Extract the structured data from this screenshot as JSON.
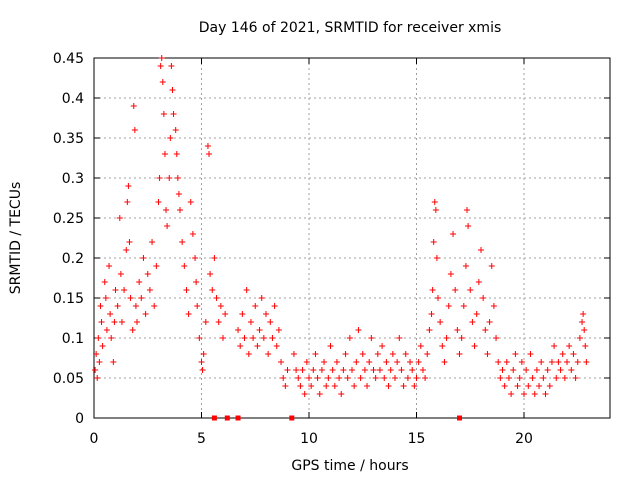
{
  "chart_data": {
    "type": "scatter",
    "title": "Day 146 of 2021, SRMTID for receiver xmis",
    "xlabel": "GPS time / hours",
    "ylabel": "SRMTID / TECUs",
    "xlim": [
      0,
      24
    ],
    "ylim": [
      0,
      0.45
    ],
    "x_ticks": [
      0,
      5,
      10,
      15,
      20
    ],
    "y_ticks": [
      0,
      0.05,
      0.1,
      0.15,
      0.2,
      0.25,
      0.3,
      0.35,
      0.4,
      0.45
    ],
    "x_tick_labels": [
      "0",
      "5",
      "10",
      "15",
      "20"
    ],
    "y_tick_labels": [
      "0",
      "0.05",
      "0.1",
      "0.15",
      "0.2",
      "0.25",
      "0.3",
      "0.35",
      "0.4",
      "0.45"
    ],
    "grid": true,
    "marker": "plus",
    "color": "#ff0000",
    "zero_markers_x": [
      5.6,
      6.2,
      6.7,
      9.2,
      17.0
    ],
    "series": [
      {
        "name": "SRMTID",
        "points": [
          [
            0.05,
            0.06
          ],
          [
            0.1,
            0.08
          ],
          [
            0.15,
            0.05
          ],
          [
            0.2,
            0.1
          ],
          [
            0.25,
            0.07
          ],
          [
            0.3,
            0.14
          ],
          [
            0.35,
            0.12
          ],
          [
            0.4,
            0.09
          ],
          [
            0.5,
            0.17
          ],
          [
            0.55,
            0.15
          ],
          [
            0.6,
            0.11
          ],
          [
            0.7,
            0.19
          ],
          [
            0.75,
            0.13
          ],
          [
            0.8,
            0.1
          ],
          [
            0.9,
            0.07
          ],
          [
            0.95,
            0.12
          ],
          [
            1.0,
            0.16
          ],
          [
            1.1,
            0.14
          ],
          [
            1.2,
            0.25
          ],
          [
            1.25,
            0.18
          ],
          [
            1.3,
            0.12
          ],
          [
            1.4,
            0.16
          ],
          [
            1.5,
            0.21
          ],
          [
            1.55,
            0.27
          ],
          [
            1.6,
            0.29
          ],
          [
            1.65,
            0.22
          ],
          [
            1.7,
            0.15
          ],
          [
            1.8,
            0.11
          ],
          [
            1.85,
            0.39
          ],
          [
            1.9,
            0.36
          ],
          [
            1.95,
            0.14
          ],
          [
            2.0,
            0.12
          ],
          [
            2.1,
            0.17
          ],
          [
            2.2,
            0.15
          ],
          [
            2.3,
            0.2
          ],
          [
            2.4,
            0.13
          ],
          [
            2.5,
            0.18
          ],
          [
            2.6,
            0.16
          ],
          [
            2.7,
            0.22
          ],
          [
            2.8,
            0.14
          ],
          [
            2.9,
            0.19
          ],
          [
            3.0,
            0.27
          ],
          [
            3.05,
            0.3
          ],
          [
            3.1,
            0.44
          ],
          [
            3.15,
            0.45
          ],
          [
            3.2,
            0.42
          ],
          [
            3.25,
            0.38
          ],
          [
            3.3,
            0.33
          ],
          [
            3.35,
            0.26
          ],
          [
            3.4,
            0.24
          ],
          [
            3.5,
            0.3
          ],
          [
            3.55,
            0.35
          ],
          [
            3.6,
            0.44
          ],
          [
            3.65,
            0.41
          ],
          [
            3.7,
            0.38
          ],
          [
            3.8,
            0.36
          ],
          [
            3.85,
            0.33
          ],
          [
            3.9,
            0.3
          ],
          [
            3.95,
            0.28
          ],
          [
            4.0,
            0.26
          ],
          [
            4.1,
            0.22
          ],
          [
            4.2,
            0.19
          ],
          [
            4.3,
            0.16
          ],
          [
            4.4,
            0.13
          ],
          [
            4.5,
            0.27
          ],
          [
            4.6,
            0.23
          ],
          [
            4.7,
            0.2
          ],
          [
            4.75,
            0.17
          ],
          [
            4.8,
            0.14
          ],
          [
            4.9,
            0.1
          ],
          [
            5.0,
            0.07
          ],
          [
            5.05,
            0.06
          ],
          [
            5.1,
            0.08
          ],
          [
            5.2,
            0.12
          ],
          [
            5.3,
            0.34
          ],
          [
            5.35,
            0.33
          ],
          [
            5.4,
            0.18
          ],
          [
            5.5,
            0.16
          ],
          [
            5.6,
            0.2
          ],
          [
            5.7,
            0.15
          ],
          [
            5.8,
            0.12
          ],
          [
            5.9,
            0.14
          ],
          [
            6.0,
            0.1
          ],
          [
            6.1,
            0.13
          ],
          [
            6.7,
            0.11
          ],
          [
            6.8,
            0.09
          ],
          [
            6.9,
            0.13
          ],
          [
            7.0,
            0.1
          ],
          [
            7.1,
            0.16
          ],
          [
            7.2,
            0.08
          ],
          [
            7.3,
            0.12
          ],
          [
            7.4,
            0.1
          ],
          [
            7.5,
            0.14
          ],
          [
            7.6,
            0.09
          ],
          [
            7.7,
            0.11
          ],
          [
            7.8,
            0.15
          ],
          [
            7.9,
            0.1
          ],
          [
            8.0,
            0.13
          ],
          [
            8.1,
            0.08
          ],
          [
            8.2,
            0.12
          ],
          [
            8.3,
            0.1
          ],
          [
            8.4,
            0.14
          ],
          [
            8.5,
            0.09
          ],
          [
            8.6,
            0.11
          ],
          [
            8.7,
            0.07
          ],
          [
            8.8,
            0.05
          ],
          [
            8.9,
            0.04
          ],
          [
            9.0,
            0.06
          ],
          [
            9.3,
            0.08
          ],
          [
            9.4,
            0.06
          ],
          [
            9.5,
            0.05
          ],
          [
            9.6,
            0.04
          ],
          [
            9.7,
            0.06
          ],
          [
            9.8,
            0.03
          ],
          [
            9.9,
            0.07
          ],
          [
            10.0,
            0.05
          ],
          [
            10.1,
            0.04
          ],
          [
            10.2,
            0.06
          ],
          [
            10.3,
            0.08
          ],
          [
            10.4,
            0.05
          ],
          [
            10.5,
            0.03
          ],
          [
            10.6,
            0.06
          ],
          [
            10.7,
            0.07
          ],
          [
            10.8,
            0.04
          ],
          [
            10.9,
            0.05
          ],
          [
            11.0,
            0.09
          ],
          [
            11.1,
            0.06
          ],
          [
            11.2,
            0.04
          ],
          [
            11.3,
            0.07
          ],
          [
            11.4,
            0.05
          ],
          [
            11.5,
            0.03
          ],
          [
            11.6,
            0.06
          ],
          [
            11.7,
            0.08
          ],
          [
            11.8,
            0.05
          ],
          [
            11.9,
            0.1
          ],
          [
            12.0,
            0.06
          ],
          [
            12.1,
            0.04
          ],
          [
            12.2,
            0.07
          ],
          [
            12.3,
            0.11
          ],
          [
            12.4,
            0.05
          ],
          [
            12.5,
            0.08
          ],
          [
            12.6,
            0.06
          ],
          [
            12.7,
            0.04
          ],
          [
            12.8,
            0.07
          ],
          [
            12.9,
            0.1
          ],
          [
            13.0,
            0.06
          ],
          [
            13.1,
            0.05
          ],
          [
            13.2,
            0.08
          ],
          [
            13.3,
            0.06
          ],
          [
            13.4,
            0.09
          ],
          [
            13.5,
            0.05
          ],
          [
            13.6,
            0.07
          ],
          [
            13.7,
            0.04
          ],
          [
            13.8,
            0.06
          ],
          [
            13.9,
            0.08
          ],
          [
            14.0,
            0.05
          ],
          [
            14.1,
            0.07
          ],
          [
            14.2,
            0.1
          ],
          [
            14.3,
            0.06
          ],
          [
            14.4,
            0.04
          ],
          [
            14.5,
            0.08
          ],
          [
            14.6,
            0.05
          ],
          [
            14.7,
            0.07
          ],
          [
            14.8,
            0.06
          ],
          [
            14.9,
            0.04
          ],
          [
            15.0,
            0.05
          ],
          [
            15.1,
            0.07
          ],
          [
            15.2,
            0.09
          ],
          [
            15.3,
            0.06
          ],
          [
            15.4,
            0.05
          ],
          [
            15.5,
            0.08
          ],
          [
            15.6,
            0.11
          ],
          [
            15.7,
            0.13
          ],
          [
            15.75,
            0.16
          ],
          [
            15.8,
            0.22
          ],
          [
            15.85,
            0.27
          ],
          [
            15.9,
            0.26
          ],
          [
            15.95,
            0.2
          ],
          [
            16.0,
            0.15
          ],
          [
            16.1,
            0.12
          ],
          [
            16.2,
            0.09
          ],
          [
            16.3,
            0.07
          ],
          [
            16.4,
            0.1
          ],
          [
            16.5,
            0.14
          ],
          [
            16.6,
            0.18
          ],
          [
            16.7,
            0.23
          ],
          [
            16.8,
            0.16
          ],
          [
            16.9,
            0.11
          ],
          [
            17.0,
            0.08
          ],
          [
            17.1,
            0.1
          ],
          [
            17.2,
            0.14
          ],
          [
            17.3,
            0.19
          ],
          [
            17.35,
            0.26
          ],
          [
            17.4,
            0.24
          ],
          [
            17.5,
            0.16
          ],
          [
            17.6,
            0.12
          ],
          [
            17.7,
            0.09
          ],
          [
            17.8,
            0.13
          ],
          [
            17.9,
            0.17
          ],
          [
            18.0,
            0.21
          ],
          [
            18.1,
            0.15
          ],
          [
            18.2,
            0.11
          ],
          [
            18.3,
            0.08
          ],
          [
            18.4,
            0.12
          ],
          [
            18.5,
            0.19
          ],
          [
            18.6,
            0.14
          ],
          [
            18.7,
            0.1
          ],
          [
            18.8,
            0.07
          ],
          [
            18.9,
            0.05
          ],
          [
            19.0,
            0.06
          ],
          [
            19.1,
            0.04
          ],
          [
            19.2,
            0.07
          ],
          [
            19.3,
            0.05
          ],
          [
            19.4,
            0.03
          ],
          [
            19.5,
            0.06
          ],
          [
            19.6,
            0.08
          ],
          [
            19.7,
            0.04
          ],
          [
            19.8,
            0.05
          ],
          [
            19.9,
            0.07
          ],
          [
            20.0,
            0.03
          ],
          [
            20.1,
            0.06
          ],
          [
            20.2,
            0.04
          ],
          [
            20.3,
            0.08
          ],
          [
            20.4,
            0.05
          ],
          [
            20.5,
            0.03
          ],
          [
            20.6,
            0.06
          ],
          [
            20.7,
            0.04
          ],
          [
            20.8,
            0.07
          ],
          [
            20.9,
            0.05
          ],
          [
            21.0,
            0.03
          ],
          [
            21.1,
            0.06
          ],
          [
            21.2,
            0.04
          ],
          [
            21.3,
            0.07
          ],
          [
            21.4,
            0.09
          ],
          [
            21.5,
            0.05
          ],
          [
            21.6,
            0.07
          ],
          [
            21.7,
            0.06
          ],
          [
            21.8,
            0.08
          ],
          [
            21.9,
            0.05
          ],
          [
            22.0,
            0.07
          ],
          [
            22.1,
            0.09
          ],
          [
            22.2,
            0.06
          ],
          [
            22.3,
            0.08
          ],
          [
            22.4,
            0.05
          ],
          [
            22.5,
            0.07
          ],
          [
            22.6,
            0.1
          ],
          [
            22.7,
            0.12
          ],
          [
            22.75,
            0.13
          ],
          [
            22.8,
            0.11
          ],
          [
            22.85,
            0.09
          ],
          [
            22.9,
            0.07
          ]
        ]
      }
    ]
  }
}
